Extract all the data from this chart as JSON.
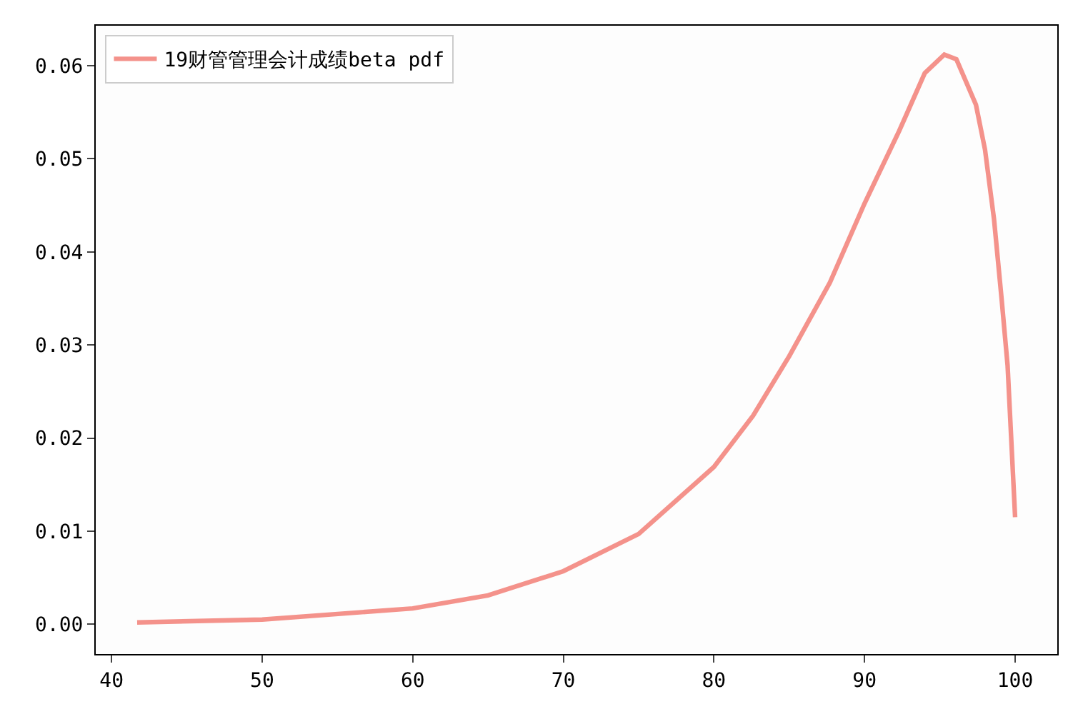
{
  "chart_data": {
    "type": "line",
    "x": [
      41.7,
      50,
      60,
      65,
      70,
      75,
      80,
      82.6,
      85,
      87.7,
      90,
      92.3,
      94,
      95.3,
      96.1,
      97.4,
      98,
      98.6,
      99.1,
      99.5,
      100
    ],
    "series": [
      {
        "name": "19财管管理会计成绩beta pdf",
        "color": "#f4928b",
        "values": [
          0.0002,
          0.0005,
          0.0017,
          0.0031,
          0.0057,
          0.0097,
          0.0169,
          0.0224,
          0.0288,
          0.0367,
          0.0452,
          0.053,
          0.0592,
          0.0612,
          0.0607,
          0.0558,
          0.051,
          0.0435,
          0.035,
          0.0278,
          0.0115
        ]
      }
    ],
    "xlim": [
      38.95,
      102.8
    ],
    "xticks": [
      40,
      50,
      60,
      70,
      80,
      90,
      100
    ],
    "ylim": [
      -0.0032,
      0.0643
    ],
    "yticks": [
      {
        "value": 0,
        "label": "0.00"
      },
      {
        "value": 0.01,
        "label": "0.01"
      },
      {
        "value": 0.02,
        "label": "0.02"
      },
      {
        "value": 0.03,
        "label": "0.03"
      },
      {
        "value": 0.04,
        "label": "0.04"
      },
      {
        "value": 0.05,
        "label": "0.05"
      },
      {
        "value": 0.06,
        "label": "0.06"
      }
    ],
    "legend": "top left",
    "grid": false,
    "marker": "none",
    "line_style": "solid"
  }
}
